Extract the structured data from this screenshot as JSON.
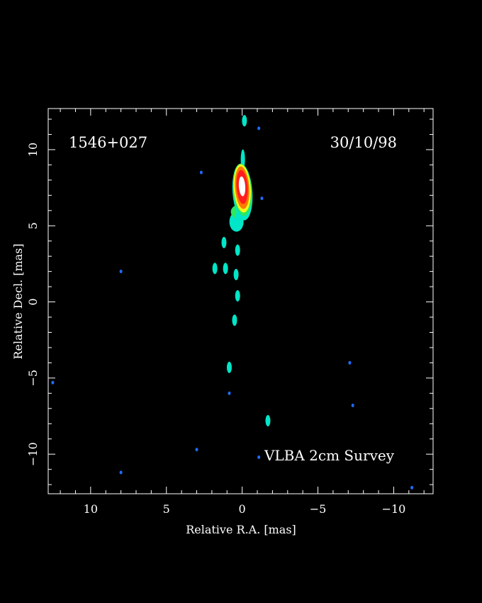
{
  "chart_data": {
    "type": "heatmap",
    "source_name": "1546+027",
    "epoch": "30/10/98",
    "survey": "VLBA 2cm Survey",
    "xlabel": "Relative R.A. [mas]",
    "ylabel": "Relative Decl. [mas]",
    "xlim": [
      12.8,
      -12.6
    ],
    "ylim": [
      -12.6,
      12.7
    ],
    "x_ticks": [
      10,
      5,
      0,
      -5,
      -10
    ],
    "y_ticks": [
      10,
      5,
      0,
      -5,
      -10
    ],
    "x_tick_labels": [
      "10",
      "5",
      "0",
      "−5",
      "−10"
    ],
    "y_tick_labels": [
      "10",
      "5",
      "0",
      "−5",
      "−10"
    ],
    "colors": {
      "background": "#000000",
      "frame": "#ffffff",
      "blue": "#1e6cff",
      "cyan": "#00e6c8",
      "green": "#2ee860",
      "yellow": "#f0ff1a",
      "orange": "#ff7a00",
      "red": "#ff1e1e",
      "white": "#ffffff"
    },
    "core": {
      "ra": 0.0,
      "dec": 7.5,
      "peak": "white"
    },
    "jet_components": [
      {
        "ra": 0.25,
        "dec": 5.6,
        "level": "cyan"
      },
      {
        "ra": 0.3,
        "dec": 3.4,
        "level": "cyan"
      },
      {
        "ra": 0.4,
        "dec": 1.8,
        "level": "cyan"
      },
      {
        "ra": 0.3,
        "dec": 0.4,
        "level": "cyan"
      },
      {
        "ra": 0.5,
        "dec": -1.2,
        "level": "cyan"
      },
      {
        "ra": 1.1,
        "dec": 2.2,
        "level": "cyan"
      },
      {
        "ra": 1.8,
        "dec": 2.2,
        "level": "cyan"
      },
      {
        "ra": 1.2,
        "dec": 3.9,
        "level": "cyan"
      },
      {
        "ra": 0.85,
        "dec": -4.3,
        "level": "cyan"
      },
      {
        "ra": -1.7,
        "dec": -7.8,
        "level": "cyan"
      },
      {
        "ra": -0.15,
        "dec": 11.9,
        "level": "cyan"
      }
    ],
    "noise_spots": [
      {
        "ra": 2.7,
        "dec": 8.5,
        "level": "blue"
      },
      {
        "ra": -1.1,
        "dec": 11.4,
        "level": "blue"
      },
      {
        "ra": -1.3,
        "dec": 6.8,
        "level": "blue"
      },
      {
        "ra": 8.0,
        "dec": 2.0,
        "level": "blue"
      },
      {
        "ra": 12.5,
        "dec": -5.3,
        "level": "blue"
      },
      {
        "ra": -7.1,
        "dec": -4.0,
        "level": "blue"
      },
      {
        "ra": -7.3,
        "dec": -6.8,
        "level": "blue"
      },
      {
        "ra": 0.85,
        "dec": -6.0,
        "level": "blue"
      },
      {
        "ra": 3.0,
        "dec": -9.7,
        "level": "blue"
      },
      {
        "ra": 8.0,
        "dec": -11.2,
        "level": "blue"
      },
      {
        "ra": -1.1,
        "dec": -10.2,
        "level": "blue"
      },
      {
        "ra": -11.2,
        "dec": -12.2,
        "level": "blue"
      }
    ]
  }
}
